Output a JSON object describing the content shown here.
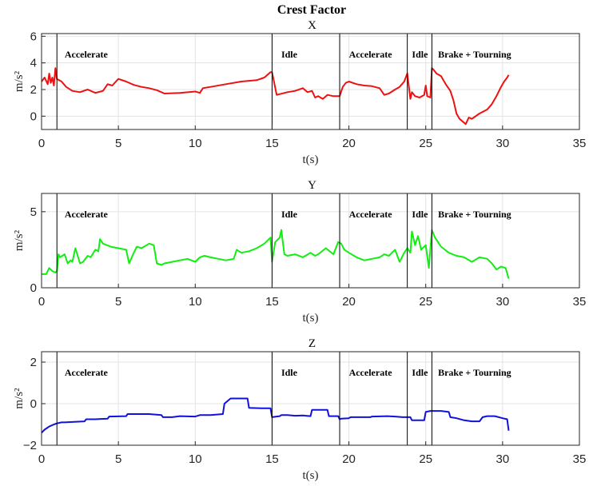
{
  "figure_title": "Crest Factor",
  "colors": {
    "x_series": "#ee1111",
    "y_series": "#11ee11",
    "z_series": "#1111dd",
    "grid": "#e3e3e3",
    "axis": "#262626",
    "phase_line": "#000000"
  },
  "chart_data": [
    {
      "type": "line",
      "title": "X",
      "xlabel": "t(s)",
      "ylabel": "m/s²",
      "xlim": [
        0,
        35
      ],
      "ylim": [
        -1,
        6.2
      ],
      "xticks": [
        0,
        5,
        10,
        15,
        20,
        25,
        30,
        35
      ],
      "yticks": [
        0,
        2,
        4,
        6
      ],
      "grid": true,
      "phase_lines": [
        1.0,
        15.0,
        19.4,
        23.8,
        25.4
      ],
      "phases": [
        {
          "label": "Accelerate",
          "x": 1.5
        },
        {
          "label": "Idle",
          "x": 15.6
        },
        {
          "label": "Accelerate",
          "x": 20.0
        },
        {
          "label": "Idle",
          "x": 24.1
        },
        {
          "label": "Brake + Tourning",
          "x": 25.8
        }
      ],
      "series": [
        {
          "x": [
            0,
            0.2,
            0.4,
            0.5,
            0.6,
            0.7,
            0.8,
            0.9,
            1.0,
            1.3,
            1.6,
            2.0,
            2.5,
            3.0,
            3.5,
            4.0,
            4.3,
            4.6,
            5.0,
            5.5,
            6.0,
            6.5,
            7.0,
            7.5,
            8.0,
            9.0,
            10.0,
            10.3,
            10.5,
            11.0,
            12.0,
            13.0,
            14.0,
            14.5,
            14.9,
            15.0,
            15.3,
            16.0,
            16.5,
            17.0,
            17.3,
            17.6,
            17.8,
            18.0,
            18.3,
            18.6,
            19.0,
            19.4,
            19.6,
            19.8,
            20.0,
            20.5,
            21.0,
            21.5,
            22.0,
            22.3,
            22.6,
            23.0,
            23.3,
            23.6,
            23.8,
            24.0,
            24.1,
            24.3,
            24.6,
            24.9,
            25.0,
            25.1,
            25.3,
            25.4,
            25.5,
            25.7,
            26.0,
            26.3,
            26.6,
            26.8,
            27.0,
            27.2,
            27.4,
            27.6,
            27.8,
            28.0,
            28.5,
            29.0,
            29.3,
            29.6,
            29.9,
            30.1,
            30.3,
            30.4
          ],
          "y": [
            2.6,
            2.9,
            2.4,
            3.2,
            2.5,
            2.9,
            2.3,
            3.6,
            2.8,
            2.6,
            2.2,
            1.9,
            1.8,
            2.0,
            1.75,
            1.9,
            2.4,
            2.3,
            2.8,
            2.6,
            2.35,
            2.2,
            2.1,
            1.95,
            1.7,
            1.75,
            1.85,
            1.75,
            2.1,
            2.2,
            2.4,
            2.6,
            2.7,
            2.9,
            3.3,
            3.3,
            1.6,
            1.8,
            1.9,
            2.1,
            1.8,
            1.9,
            1.4,
            1.5,
            1.3,
            1.6,
            1.5,
            1.5,
            2.2,
            2.5,
            2.6,
            2.4,
            2.3,
            2.25,
            2.1,
            1.6,
            1.7,
            2.0,
            2.2,
            2.6,
            3.2,
            1.3,
            1.8,
            1.5,
            1.4,
            1.6,
            2.3,
            1.5,
            1.4,
            3.6,
            3.5,
            3.2,
            3.0,
            2.4,
            1.9,
            1.2,
            0.2,
            -0.2,
            -0.4,
            -0.6,
            -0.1,
            -0.2,
            0.2,
            0.5,
            0.9,
            1.5,
            2.2,
            2.6,
            2.9,
            3.1
          ],
          "name": ""
        }
      ]
    },
    {
      "type": "line",
      "title": "Y",
      "xlabel": "t(s)",
      "ylabel": "m/s²",
      "xlim": [
        0,
        35
      ],
      "ylim": [
        0,
        6.2
      ],
      "xticks": [
        0,
        5,
        10,
        15,
        20,
        25,
        30,
        35
      ],
      "yticks": [
        0,
        5
      ],
      "grid": true,
      "phase_lines": [
        1.0,
        15.0,
        19.4,
        23.8,
        25.4
      ],
      "phases": [
        {
          "label": "Accelerate",
          "x": 1.5
        },
        {
          "label": "Idle",
          "x": 15.6
        },
        {
          "label": "Accelerate",
          "x": 20.0
        },
        {
          "label": "Idle",
          "x": 24.1
        },
        {
          "label": "Brake + Tourning",
          "x": 25.8
        }
      ],
      "series": [
        {
          "x": [
            0,
            0.3,
            0.5,
            0.7,
            0.9,
            1.0,
            1.1,
            1.2,
            1.5,
            1.7,
            1.9,
            2.0,
            2.2,
            2.5,
            2.7,
            3.0,
            3.2,
            3.5,
            3.7,
            3.8,
            4.0,
            4.5,
            5.0,
            5.5,
            5.7,
            6.0,
            6.2,
            6.5,
            7.0,
            7.3,
            7.5,
            7.8,
            8.0,
            8.5,
            9.0,
            9.5,
            10.0,
            10.3,
            10.6,
            11.0,
            11.5,
            12.0,
            12.5,
            12.7,
            13.0,
            13.5,
            14.0,
            14.5,
            14.9,
            15.0,
            15.2,
            15.5,
            15.6,
            15.8,
            16.0,
            16.5,
            17.0,
            17.5,
            17.8,
            18.0,
            18.5,
            19.0,
            19.3,
            19.5,
            19.7,
            20.0,
            20.5,
            21.0,
            21.5,
            22.0,
            22.3,
            22.6,
            23.0,
            23.3,
            23.6,
            23.8,
            24.0,
            24.1,
            24.3,
            24.5,
            24.7,
            25.0,
            25.2,
            25.4,
            25.6,
            26.0,
            26.5,
            27.0,
            27.5,
            28.0,
            28.5,
            29.0,
            29.3,
            29.6,
            29.9,
            30.2,
            30.4
          ],
          "y": [
            0.9,
            0.9,
            1.3,
            1.1,
            1.0,
            1.1,
            2.2,
            2.0,
            2.2,
            1.6,
            1.8,
            1.7,
            2.6,
            1.6,
            1.7,
            2.1,
            2.0,
            2.5,
            2.4,
            3.2,
            2.9,
            2.7,
            2.6,
            2.5,
            1.6,
            2.3,
            2.7,
            2.6,
            2.9,
            2.8,
            1.6,
            1.5,
            1.6,
            1.7,
            1.8,
            1.9,
            1.7,
            2.0,
            2.1,
            2.0,
            1.9,
            1.8,
            1.9,
            2.5,
            2.3,
            2.4,
            2.6,
            2.9,
            3.3,
            1.7,
            3.0,
            3.3,
            3.8,
            2.2,
            2.1,
            2.2,
            2.0,
            2.3,
            2.1,
            2.2,
            2.6,
            2.2,
            3.0,
            2.9,
            2.5,
            2.3,
            2.0,
            1.8,
            1.9,
            2.0,
            2.2,
            2.1,
            2.5,
            1.7,
            2.3,
            2.6,
            2.3,
            3.7,
            2.8,
            3.4,
            2.5,
            2.8,
            1.3,
            3.8,
            3.3,
            2.7,
            2.3,
            2.1,
            2.0,
            1.7,
            2.0,
            1.9,
            1.6,
            1.2,
            1.4,
            1.3,
            0.6
          ],
          "name": ""
        }
      ]
    },
    {
      "type": "line",
      "title": "Z",
      "xlabel": "t(s)",
      "ylabel": "m/s²",
      "xlim": [
        0,
        35
      ],
      "ylim": [
        -2,
        2.5
      ],
      "xticks": [
        0,
        5,
        10,
        15,
        20,
        25,
        30,
        35
      ],
      "yticks": [
        -2,
        0,
        2
      ],
      "grid": true,
      "phase_lines": [
        1.0,
        15.0,
        19.4,
        23.8,
        25.4
      ],
      "phases": [
        {
          "label": "Accelerate",
          "x": 1.5
        },
        {
          "label": "Idle",
          "x": 15.6
        },
        {
          "label": "Accelerate",
          "x": 20.0
        },
        {
          "label": "Idle",
          "x": 24.1
        },
        {
          "label": "Brake + Tourning",
          "x": 25.8
        }
      ],
      "series": [
        {
          "x": [
            0,
            0.2,
            0.5,
            0.8,
            1.0,
            1.3,
            1.5,
            2.0,
            2.8,
            2.9,
            3.5,
            4.3,
            4.4,
            5.5,
            5.6,
            6.5,
            7.0,
            7.8,
            7.9,
            8.5,
            9.0,
            10.0,
            10.3,
            11.0,
            11.8,
            11.9,
            12.3,
            13.0,
            13.4,
            13.5,
            14.3,
            14.8,
            14.9,
            15.0,
            15.5,
            15.6,
            16.0,
            16.5,
            17.0,
            17.5,
            17.6,
            18.0,
            18.6,
            18.7,
            19.3,
            19.4,
            19.5,
            20.0,
            20.1,
            21.0,
            21.4,
            21.5,
            22.5,
            23.0,
            23.5,
            24.0,
            24.1,
            24.9,
            25.0,
            25.3,
            26.0,
            26.5,
            26.6,
            27.0,
            27.5,
            28.0,
            28.5,
            28.7,
            29.0,
            29.5,
            30.0,
            30.3,
            30.4
          ],
          "y": [
            -1.4,
            -1.25,
            -1.1,
            -1.0,
            -0.95,
            -0.9,
            -0.9,
            -0.88,
            -0.85,
            -0.75,
            -0.75,
            -0.72,
            -0.62,
            -0.6,
            -0.5,
            -0.5,
            -0.5,
            -0.55,
            -0.65,
            -0.65,
            -0.6,
            -0.62,
            -0.55,
            -0.55,
            -0.5,
            0.0,
            0.25,
            0.25,
            0.25,
            -0.2,
            -0.22,
            -0.22,
            -0.22,
            -0.65,
            -0.6,
            -0.55,
            -0.55,
            -0.58,
            -0.57,
            -0.6,
            -0.3,
            -0.3,
            -0.3,
            -0.6,
            -0.6,
            -0.75,
            -0.72,
            -0.7,
            -0.65,
            -0.65,
            -0.65,
            -0.62,
            -0.6,
            -0.62,
            -0.65,
            -0.65,
            -0.8,
            -0.8,
            -0.4,
            -0.35,
            -0.35,
            -0.4,
            -0.65,
            -0.7,
            -0.8,
            -0.85,
            -0.85,
            -0.65,
            -0.6,
            -0.6,
            -0.7,
            -0.75,
            -1.3
          ],
          "name": ""
        }
      ]
    }
  ]
}
